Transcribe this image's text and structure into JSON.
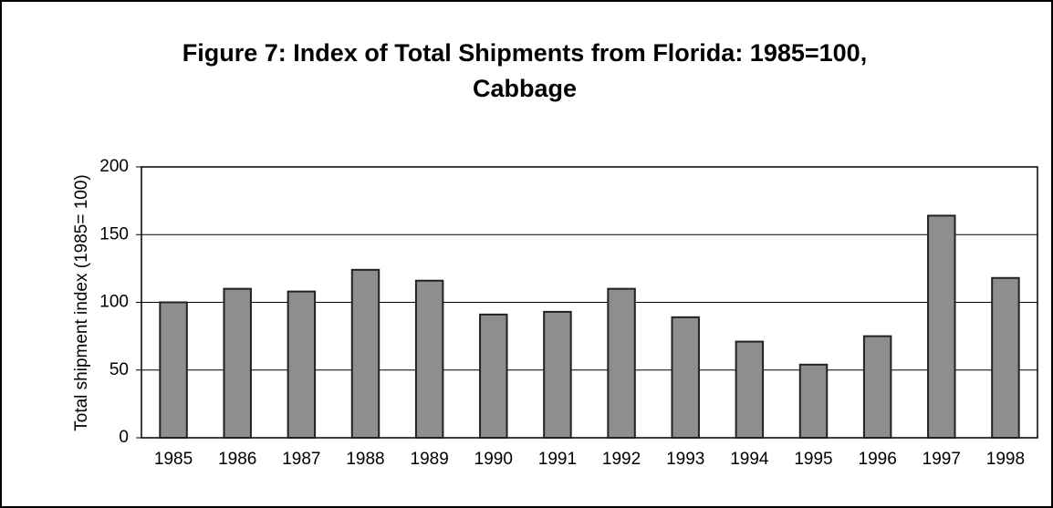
{
  "chart_data": {
    "type": "bar",
    "title": [
      "Figure 7: Index of Total Shipments from Florida: 1985=100,",
      "Cabbage"
    ],
    "ylabel": "Total shipment index (1985= 100)",
    "categories": [
      "1985",
      "1986",
      "1987",
      "1988",
      "1989",
      "1990",
      "1991",
      "1992",
      "1993",
      "1994",
      "1995",
      "1996",
      "1997",
      "1998"
    ],
    "values": [
      100,
      110,
      108,
      124,
      116,
      91,
      93,
      110,
      89,
      71,
      54,
      75,
      164,
      118
    ],
    "color": "#8e8e8e",
    "ylim": [
      0,
      200
    ],
    "yticks": [
      0,
      50,
      100,
      150,
      200
    ],
    "grid": true
  }
}
